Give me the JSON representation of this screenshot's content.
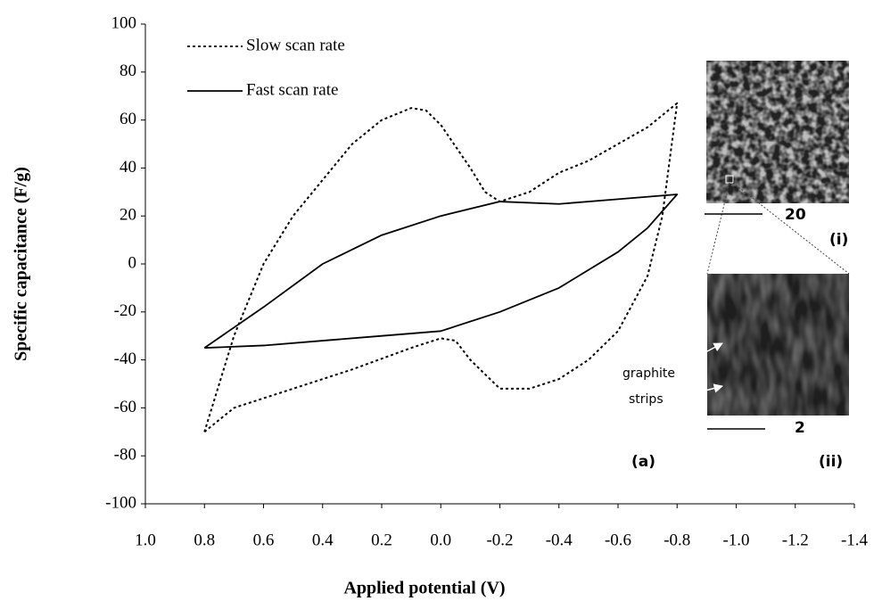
{
  "chart_data": {
    "type": "line",
    "x_label": "Applied potential (V)",
    "y_label": "Specific capacitance (F/g)",
    "xlim": [
      1.0,
      -1.4
    ],
    "ylim": [
      -100,
      100
    ],
    "xticks": [
      {
        "value": 1.0,
        "label": "1.0"
      },
      {
        "value": 0.8,
        "label": "0.8"
      },
      {
        "value": 0.6,
        "label": "0.6"
      },
      {
        "value": 0.4,
        "label": "0.4"
      },
      {
        "value": 0.2,
        "label": "0.2"
      },
      {
        "value": 0,
        "label": "0.0"
      },
      {
        "value": -0.2,
        "label": "-0.2"
      },
      {
        "value": -0.4,
        "label": "-0.4"
      },
      {
        "value": -0.6,
        "label": "-0.6"
      },
      {
        "value": -0.8,
        "label": "-0.8"
      },
      {
        "value": -1.0,
        "label": "-1.0"
      },
      {
        "value": -1.2,
        "label": "-1.2"
      },
      {
        "value": -1.4,
        "label": "-1.4"
      }
    ],
    "yticks": [
      100,
      80,
      60,
      40,
      20,
      0,
      -20,
      -40,
      -60,
      -80,
      -100
    ],
    "series": [
      {
        "name": "Slow scan rate",
        "color": "#000000",
        "dash": "dotted",
        "x": [
          0.8,
          0.7,
          0.5,
          0.3,
          0.1,
          0.0,
          -0.05,
          -0.1,
          -0.2,
          -0.3,
          -0.4,
          -0.5,
          -0.6,
          -0.7,
          -0.75,
          -0.8,
          -0.7,
          -0.6,
          -0.5,
          -0.4,
          -0.3,
          -0.2,
          -0.15,
          -0.1,
          0.0,
          0.05,
          0.1,
          0.2,
          0.3,
          0.4,
          0.5,
          0.6,
          0.7,
          0.75,
          0.8
        ],
        "values": [
          -70,
          -60,
          -52,
          -44,
          -35,
          -31,
          -32,
          -40,
          -52,
          -52,
          -48,
          -40,
          -28,
          -5,
          20,
          67,
          57,
          50,
          43,
          38,
          30,
          26,
          30,
          40,
          58,
          64,
          65,
          60,
          50,
          35,
          20,
          0,
          -30,
          -50,
          -70
        ]
      },
      {
        "name": "Fast scan rate",
        "color": "#000000",
        "dash": "solid",
        "x": [
          0.8,
          0.6,
          0.4,
          0.2,
          0.0,
          -0.2,
          -0.4,
          -0.6,
          -0.7,
          -0.8,
          -0.6,
          -0.4,
          -0.2,
          0.0,
          0.2,
          0.4,
          0.6,
          0.8
        ],
        "values": [
          -35,
          -34,
          -32,
          -30,
          -28,
          -20,
          -10,
          5,
          15,
          29,
          27,
          25,
          26,
          20,
          12,
          0,
          -18,
          -35
        ]
      }
    ],
    "annotations": {
      "panel": "(a)",
      "inset_i": "(i)",
      "inset_ii": "(ii)",
      "scale_i": "20",
      "scale_ii": "2",
      "strips": [
        "graphite",
        "strips"
      ]
    }
  }
}
